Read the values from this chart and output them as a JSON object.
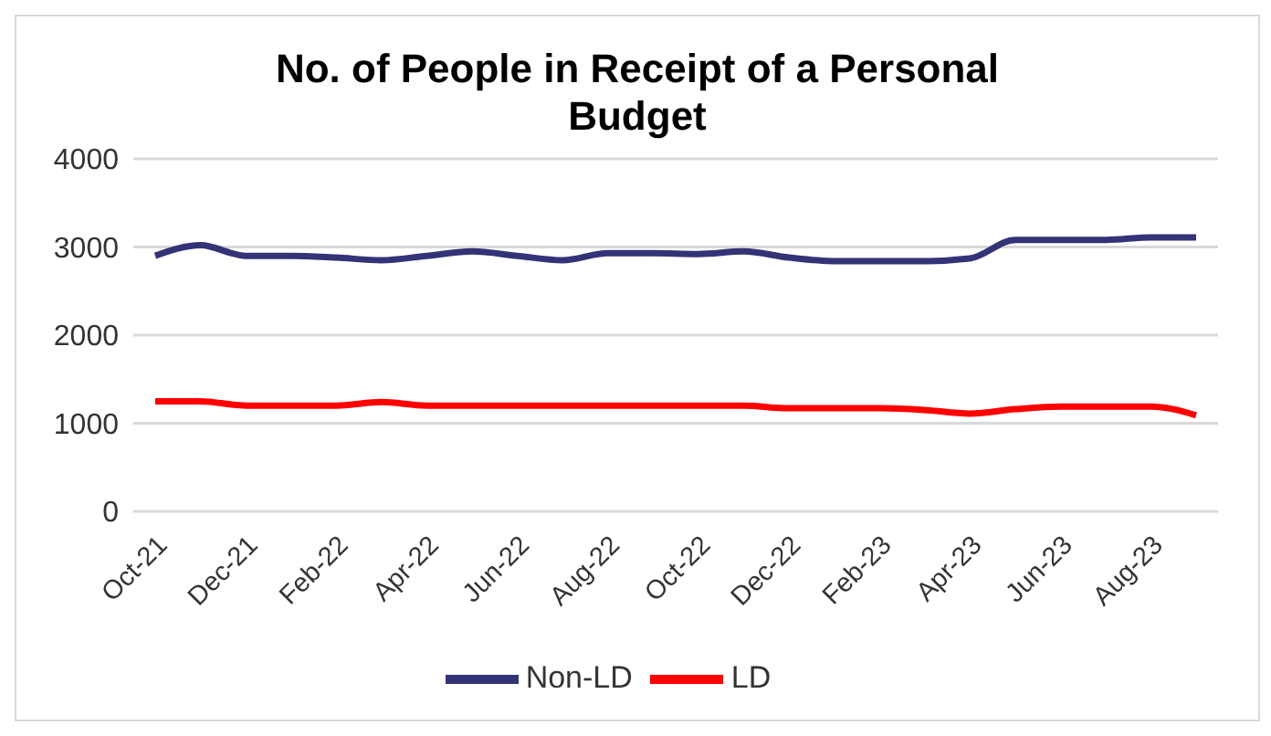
{
  "chart_data": {
    "type": "line",
    "title": "No. of People in Receipt of a Personal Budget",
    "categories": [
      "Oct-21",
      null,
      "Dec-21",
      null,
      "Feb-22",
      null,
      "Apr-22",
      null,
      "Jun-22",
      null,
      "Aug-22",
      null,
      "Oct-22",
      null,
      "Dec-22",
      null,
      "Feb-23",
      null,
      "Apr-23",
      null,
      "Jun-23",
      null,
      "Aug-23",
      null
    ],
    "series": [
      {
        "name": "Non-LD",
        "color": "#333377",
        "values": [
          2900,
          3020,
          2900,
          2900,
          2880,
          2850,
          2900,
          2950,
          2900,
          2850,
          2930,
          2930,
          2920,
          2950,
          2880,
          2840,
          2840,
          2840,
          2870,
          3080,
          3080,
          3080,
          3110,
          3110
        ]
      },
      {
        "name": "LD",
        "color": "#ff0000",
        "values": [
          1250,
          1250,
          1200,
          1200,
          1200,
          1240,
          1200,
          1200,
          1200,
          1200,
          1200,
          1200,
          1200,
          1200,
          1170,
          1170,
          1170,
          1150,
          1110,
          1160,
          1190,
          1190,
          1190,
          1090
        ]
      }
    ],
    "ylim": [
      0,
      4000
    ],
    "yticks": [
      0,
      1000,
      2000,
      3000,
      4000
    ],
    "grid": "y",
    "legend": "bottom",
    "marker": "none",
    "line_style": "solid"
  }
}
